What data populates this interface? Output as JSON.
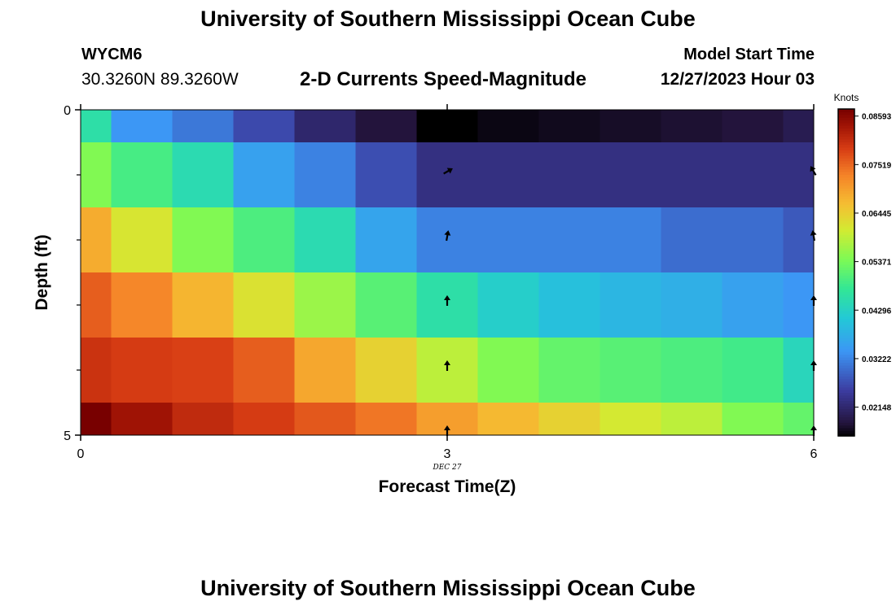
{
  "page": {
    "title_top": "University of Southern Mississippi Ocean Cube",
    "title_bottom": "University of Southern Mississippi Ocean Cube",
    "station_id": "WYCM6",
    "coordinates": "30.3260N  89.3260W",
    "subtitle": "2-D Currents Speed-Magnitude",
    "model_start_label": "Model Start Time",
    "model_start_value": "12/27/2023 Hour 03"
  },
  "chart_data": {
    "type": "heatmap",
    "title": "2-D Currents Speed-Magnitude",
    "xlabel": "Forecast Time(Z)",
    "ylabel": "Depth (ft)",
    "xlim": [
      0,
      6
    ],
    "ylim": [
      0,
      5
    ],
    "x_ticks": [
      {
        "value": 0,
        "label": "0"
      },
      {
        "value": 3,
        "label": "3"
      },
      {
        "value": 6,
        "label": "6"
      }
    ],
    "y_ticks": [
      {
        "value": 0,
        "label": "0"
      },
      {
        "value": 5,
        "label": "5"
      }
    ],
    "x_annotation": {
      "value": 3,
      "label": "DEC 27"
    },
    "colorbar": {
      "label": "Knots",
      "min": 0.0151,
      "max": 0.0875,
      "tick_values": [
        0.02148,
        0.03222,
        0.04296,
        0.05371,
        0.06445,
        0.07519,
        0.08593
      ],
      "tick_labels": [
        "0.02148",
        "0.03222",
        "0.04296",
        "0.05371",
        "0.06445",
        "0.07519",
        "0.08593"
      ]
    },
    "time_edges": [
      0,
      0.25,
      0.75,
      1.25,
      1.75,
      2.25,
      2.75,
      3.25,
      3.75,
      4.25,
      4.75,
      5.25,
      5.75,
      6
    ],
    "depth_edges": [
      0,
      0.5,
      1.5,
      2.5,
      3.5,
      4.5,
      5
    ],
    "speed_grid": [
      [
        0.046,
        0.034,
        0.031,
        0.0265,
        0.0215,
        0.018,
        0.015,
        0.016,
        0.0165,
        0.017,
        0.0175,
        0.018,
        0.0195
      ],
      [
        0.0545,
        0.0495,
        0.045,
        0.0355,
        0.032,
        0.027,
        0.023,
        0.023,
        0.023,
        0.023,
        0.023,
        0.023,
        0.023
      ],
      [
        0.0685,
        0.0615,
        0.0545,
        0.05,
        0.045,
        0.036,
        0.032,
        0.032,
        0.032,
        0.032,
        0.03,
        0.03,
        0.028
      ],
      [
        0.076,
        0.0725,
        0.0675,
        0.062,
        0.0565,
        0.051,
        0.046,
        0.0425,
        0.04,
        0.0385,
        0.0375,
        0.0355,
        0.034
      ],
      [
        0.08,
        0.079,
        0.0785,
        0.076,
        0.069,
        0.064,
        0.059,
        0.0545,
        0.052,
        0.051,
        0.05,
        0.049,
        0.044
      ],
      [
        0.0875,
        0.084,
        0.081,
        0.079,
        0.0765,
        0.074,
        0.07,
        0.067,
        0.064,
        0.061,
        0.059,
        0.0545,
        0.052
      ]
    ],
    "vectors": [
      {
        "time": 3,
        "depth": 1,
        "angle": 60
      },
      {
        "time": 3,
        "depth": 2,
        "angle": 10
      },
      {
        "time": 3,
        "depth": 3,
        "angle": 0
      },
      {
        "time": 3,
        "depth": 4,
        "angle": 0
      },
      {
        "time": 3,
        "depth": 5,
        "angle": 0
      },
      {
        "time": 6,
        "depth": 1,
        "angle": -30
      },
      {
        "time": 6,
        "depth": 2,
        "angle": -10
      },
      {
        "time": 6,
        "depth": 3,
        "angle": 0
      },
      {
        "time": 6,
        "depth": 4,
        "angle": 0
      },
      {
        "time": 6,
        "depth": 5,
        "angle": 0
      }
    ]
  }
}
